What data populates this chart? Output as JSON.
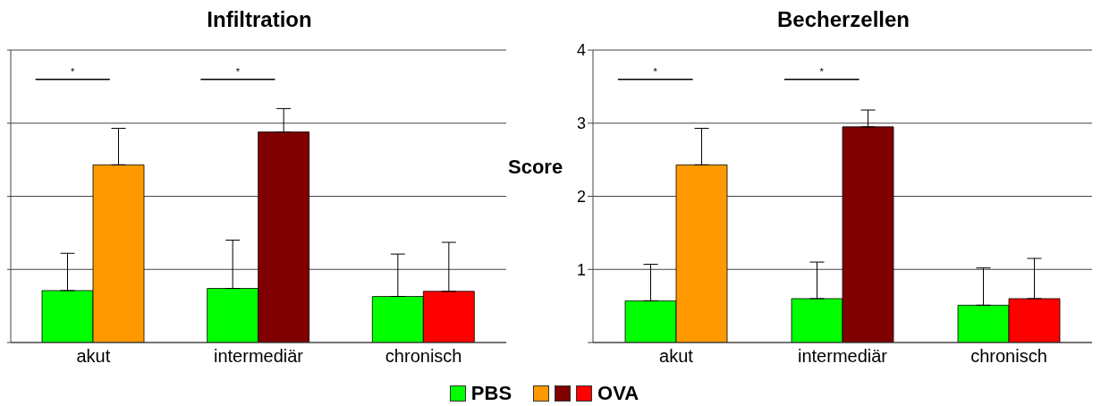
{
  "chart_data": [
    {
      "type": "bar",
      "title": "Infiltration",
      "categories": [
        "akut",
        "intermediär",
        "chronisch"
      ],
      "series": [
        {
          "name": "PBS",
          "color": "#00ff00",
          "values": [
            0.71,
            0.74,
            0.63
          ],
          "errors": [
            [
              0.71,
              1.22
            ],
            [
              0.74,
              1.4
            ],
            [
              0.63,
              1.21
            ]
          ]
        },
        {
          "name": "OVA",
          "colors": [
            "#ff9900",
            "#800000",
            "#ff0000"
          ],
          "values": [
            2.43,
            2.88,
            0.7
          ],
          "errors": [
            [
              2.43,
              2.93
            ],
            [
              2.88,
              3.2
            ],
            [
              0.7,
              1.37
            ]
          ]
        }
      ],
      "ylim": [
        0,
        4
      ],
      "yticks": [
        0,
        1,
        2,
        3,
        4
      ],
      "tick_labels": "x",
      "grid": "y",
      "legend": "bottom",
      "annotations": [
        "*",
        "*"
      ]
    },
    {
      "type": "bar",
      "title": "Becherzellen",
      "ylabel": "Score",
      "categories": [
        "akut",
        "intermediär",
        "chronisch"
      ],
      "series": [
        {
          "name": "PBS",
          "color": "#00ff00",
          "values": [
            0.57,
            0.6,
            0.51
          ],
          "errors": [
            [
              0.57,
              1.07
            ],
            [
              0.6,
              1.1
            ],
            [
              0.51,
              1.02
            ]
          ]
        },
        {
          "name": "OVA",
          "colors": [
            "#ff9900",
            "#800000",
            "#ff0000"
          ],
          "values": [
            2.43,
            2.95,
            0.6
          ],
          "errors": [
            [
              2.43,
              2.93
            ],
            [
              2.95,
              3.18
            ],
            [
              0.6,
              1.15
            ]
          ]
        }
      ],
      "ylim": [
        0,
        4
      ],
      "yticks": [
        {
          "value": 0,
          "label": null
        },
        1,
        2,
        3,
        4
      ],
      "grid": "y",
      "legend": "bottom",
      "annotations": [
        "*",
        "*"
      ]
    }
  ]
}
